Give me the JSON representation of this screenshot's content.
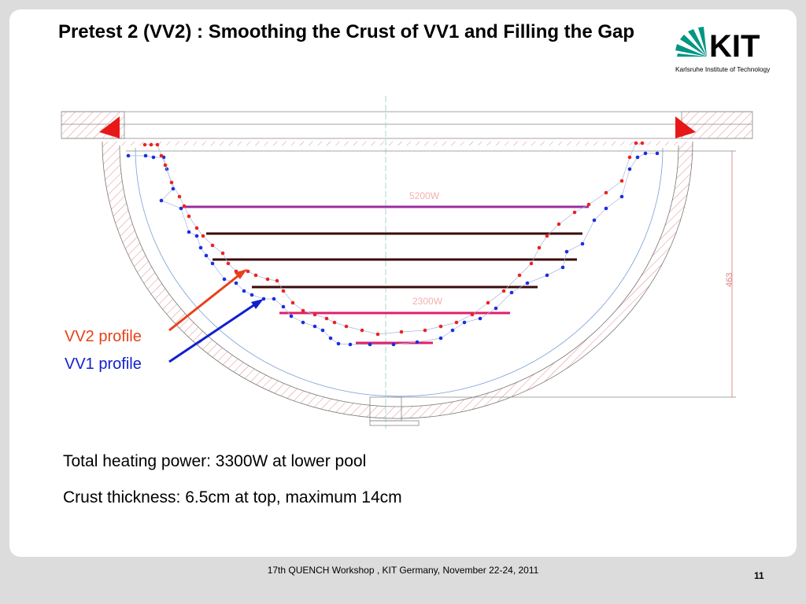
{
  "header": {
    "title": "Pretest 2 (VV2) : Smoothing the Crust of VV1 and Filling the Gap",
    "logo": {
      "mark": "KIT",
      "caption": "Karlsruhe Institute of Technology"
    }
  },
  "drawing": {
    "labels": {
      "vv2": "VV2 profile",
      "vv1": "VV1 profile"
    },
    "annotations": {
      "upper_power": "5200W",
      "lower_power": "2300W",
      "height": "463"
    }
  },
  "body": [
    "Total heating power: 3300W at lower pool",
    "Crust thickness: 6.5cm at top, maximum 14cm"
  ],
  "footer": {
    "text": "17th QUENCH Workshop , KIT Germany, November 22-24, 2011",
    "page_number": "11"
  }
}
